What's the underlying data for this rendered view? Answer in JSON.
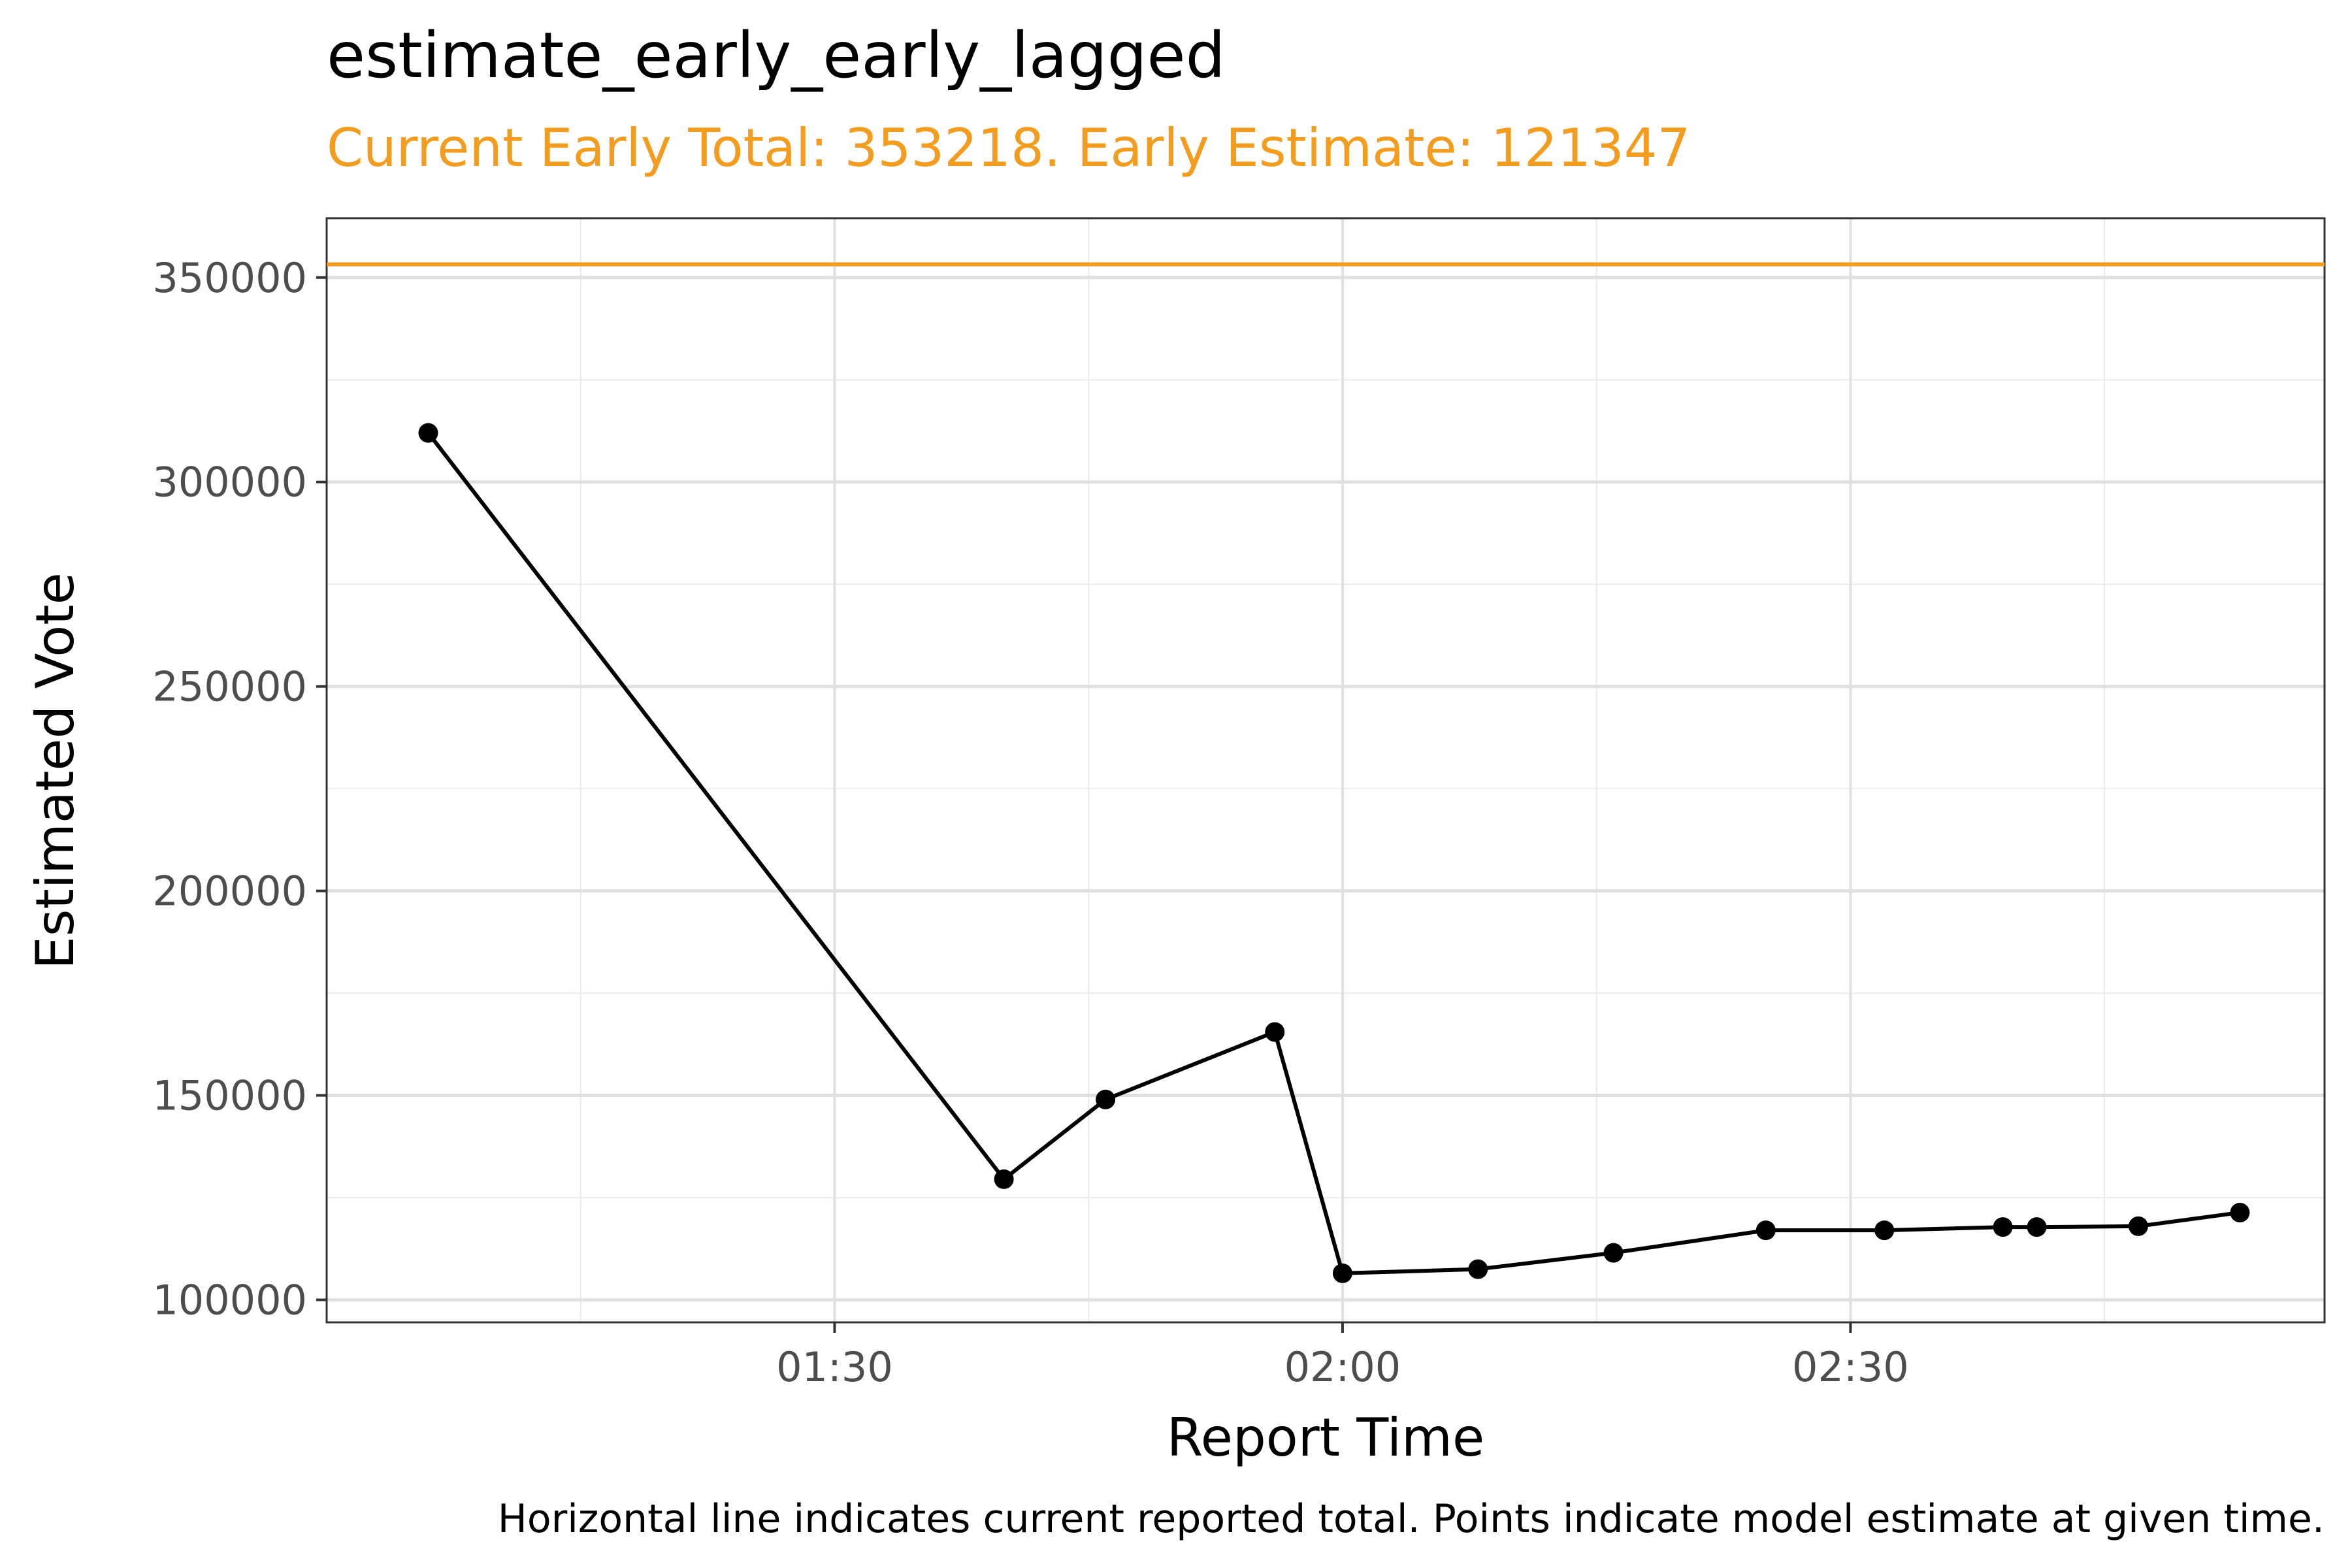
{
  "chart_data": {
    "type": "line",
    "title": "estimate_early_early_lagged",
    "subtitle": "Current Early Total: 353218. Early Estimate: 121347",
    "xlabel": "Report Time",
    "ylabel": "Estimated Vote",
    "caption": "Horizontal line indicates current reported total. Points indicate model estimate at given time.",
    "x_tick_labels": [
      "01:30",
      "02:00",
      "02:30"
    ],
    "y_tick_labels": [
      "100000",
      "150000",
      "200000",
      "250000",
      "300000",
      "350000"
    ],
    "x_ticks": [
      "01:30",
      "02:00",
      "02:30"
    ],
    "y_ticks": [
      100000,
      150000,
      200000,
      250000,
      300000,
      350000
    ],
    "xlim": [
      "01:00",
      "02:58"
    ],
    "ylim": [
      94500,
      364500
    ],
    "reference_line": {
      "value": 353218,
      "color": "#f39c1e"
    },
    "points": [
      {
        "x": "01:06",
        "y": 312000
      },
      {
        "x": "01:40",
        "y": 129500
      },
      {
        "x": "01:46",
        "y": 149000
      },
      {
        "x": "01:56",
        "y": 165500
      },
      {
        "x": "02:00",
        "y": 106500
      },
      {
        "x": "02:08",
        "y": 107500
      },
      {
        "x": "02:16",
        "y": 111500
      },
      {
        "x": "02:25",
        "y": 117000
      },
      {
        "x": "02:32",
        "y": 117000
      },
      {
        "x": "02:39",
        "y": 117800
      },
      {
        "x": "02:41",
        "y": 117800
      },
      {
        "x": "02:47",
        "y": 118000
      },
      {
        "x": "02:53",
        "y": 121347
      }
    ],
    "line_color": "#000000",
    "grid": true
  }
}
